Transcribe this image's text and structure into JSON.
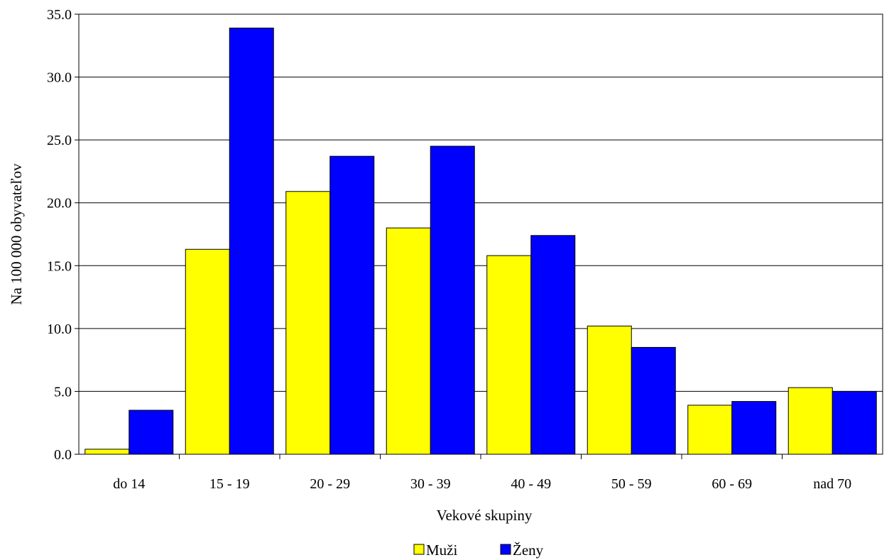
{
  "chart_data": {
    "type": "bar",
    "categories": [
      "do 14",
      "15 - 19",
      "20 - 29",
      "30 - 39",
      "40 - 49",
      "50 - 59",
      "60 - 69",
      "nad 70"
    ],
    "series": [
      {
        "name": "Muži",
        "color": "#ffff00",
        "values": [
          0.4,
          16.3,
          20.9,
          18.0,
          15.8,
          10.2,
          3.9,
          5.3
        ]
      },
      {
        "name": "Ženy",
        "color": "#0000ff",
        "values": [
          3.5,
          33.9,
          23.7,
          24.5,
          17.4,
          8.5,
          4.2,
          5.0
        ]
      }
    ],
    "yticks": [
      "0.0",
      "5.0",
      "10.0",
      "15.0",
      "20.0",
      "25.0",
      "30.0",
      "35.0"
    ],
    "ylim": [
      0,
      35
    ],
    "xlabel": "Vekové skupiny",
    "ylabel": "Na 100 000 obyvateľov",
    "grid": true,
    "legend_position": "bottom"
  }
}
